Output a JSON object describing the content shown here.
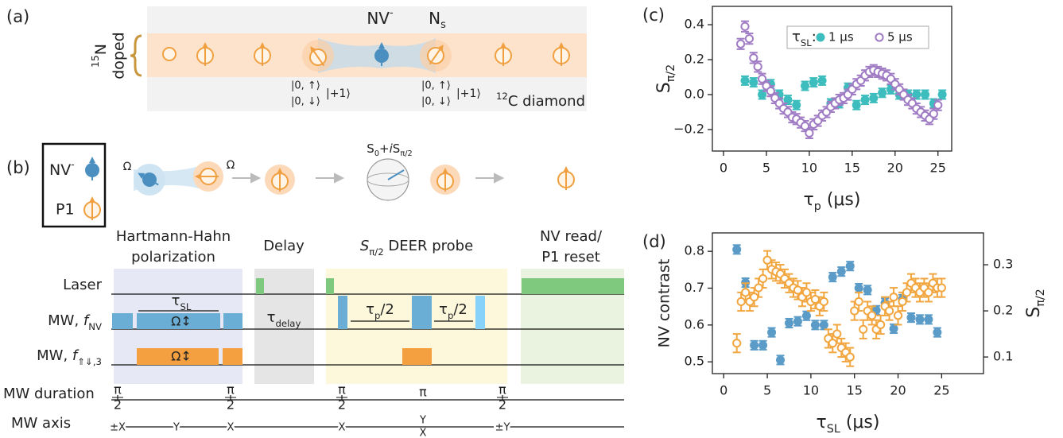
{
  "panel_a": {
    "label": "(a)",
    "doped": [
      "15",
      "N"
    ],
    "doped_word": "doped",
    "nv": [
      "NV",
      "-"
    ],
    "ns": [
      "N",
      "s"
    ],
    "kets": [
      {
        "up": "|0, ↑⟩",
        "down": "|0, ↓⟩",
        "plus": "|+1⟩"
      },
      {
        "up": "|0, ↑⟩",
        "down": "|0, ↓⟩",
        "plus": "|+1⟩"
      }
    ],
    "diamond": [
      "12",
      "C diamond"
    ]
  },
  "panel_b": {
    "label": "(b)",
    "legend_nv": [
      "NV",
      "-"
    ],
    "legend_p1": "P1",
    "omega": [
      "Ω",
      "Ω"
    ],
    "probe": [
      "S",
      "0",
      "+",
      "i",
      "S",
      "π/2"
    ],
    "stages": {
      "hh": [
        "Hartmann-Hahn",
        "polarization"
      ],
      "delay": "Delay",
      "deer": [
        "S",
        "π/2",
        " DEER probe"
      ],
      "read": [
        "NV read/",
        "P1 reset"
      ]
    },
    "rows": {
      "laser": "Laser",
      "mw_nv": [
        "MW, ",
        "f",
        "NV"
      ],
      "mw_p1": [
        "MW, ",
        "f",
        "⇑⇓,3"
      ],
      "duration": "MW duration",
      "axis": "MW axis"
    },
    "pulse_labels": {
      "tau_sl": [
        "τ",
        "SL"
      ],
      "omega_nv": "Ω↕",
      "omega_p1": "Ω↕",
      "tau_delay": [
        "τ",
        "delay"
      ],
      "tau_p1": [
        "τ",
        "p",
        "/2"
      ],
      "tau_p2": [
        "τ",
        "p",
        "/2"
      ]
    },
    "durations": [
      {
        "num": "π",
        "den": "2"
      },
      {
        "num": "π",
        "den": "2"
      },
      {
        "num": "π",
        "den": "2"
      },
      {
        "num": "π"
      },
      {
        "num": "π",
        "den": "2"
      }
    ],
    "axes": [
      "±X",
      "Y",
      "X",
      "X",
      "±Y"
    ],
    "axes_stack": [
      "Y",
      "X"
    ]
  },
  "chart_data": [
    {
      "type": "scatter",
      "panel": "(c)",
      "xlim": [
        -1.3,
        26.6
      ],
      "xticks": [
        0,
        5,
        10,
        15,
        20,
        25
      ],
      "ylim": [
        -0.323,
        0.505
      ],
      "yticks": [
        {
          "value": -0.2,
          "label": "−0.2"
        },
        {
          "value": 0,
          "label": "0.0"
        },
        0.2,
        0.4
      ],
      "x_label": [
        "τ",
        "p",
        " (μs)"
      ],
      "y_label": [
        "S",
        "π/2"
      ],
      "legend_title": [
        "τ",
        "SL",
        ":"
      ],
      "legend": "top",
      "series": [
        {
          "name": "1 μs",
          "color": "#3dbdbd",
          "marker": "filled",
          "error": 0.025,
          "x": [
            2.5,
            3.5,
            4.5,
            5.5,
            6.5,
            7.5,
            8.5,
            9.5,
            10.5,
            11.5,
            12.5,
            13.5,
            14.5,
            15.5,
            16.5,
            17.5,
            18.5,
            19.5,
            20.5,
            21.5,
            22.5,
            23.5,
            24.5,
            25.5
          ],
          "values": [
            0.08,
            0.07,
            0.0,
            0.06,
            0.0,
            -0.03,
            -0.06,
            0.05,
            0.07,
            0.08,
            -0.05,
            -0.05,
            0.04,
            -0.06,
            -0.03,
            -0.02,
            0.01,
            0.03,
            0.0,
            0.0,
            0.0,
            0.0,
            -0.05,
            0.0
          ]
        },
        {
          "name": "5 μs",
          "color": "#a07cc5",
          "marker": "open",
          "error": 0.03,
          "x": [
            2,
            2.5,
            3,
            3.5,
            4,
            4.5,
            5,
            5.5,
            6,
            6.5,
            7,
            7.5,
            8,
            8.5,
            9,
            9.5,
            10,
            10.5,
            11,
            11.5,
            12,
            12.5,
            13,
            13.5,
            14,
            14.5,
            15,
            15.5,
            16,
            16.5,
            17,
            17.5,
            18,
            18.5,
            19,
            19.5,
            20,
            20.5,
            21,
            21.5,
            22,
            22.5,
            23,
            23.5,
            24,
            24.5,
            25
          ],
          "values": [
            0.29,
            0.39,
            0.32,
            0.21,
            0.16,
            0.09,
            0.05,
            0.02,
            -0.02,
            -0.05,
            -0.08,
            -0.1,
            -0.13,
            -0.14,
            -0.16,
            -0.18,
            -0.22,
            -0.17,
            -0.15,
            -0.12,
            -0.1,
            -0.07,
            -0.05,
            -0.03,
            -0.02,
            0,
            0.03,
            0.06,
            0.08,
            0.11,
            0.13,
            0.14,
            0.13,
            0.12,
            0.11,
            0.09,
            0.06,
            0.03,
            0,
            -0.03,
            -0.05,
            -0.08,
            -0.1,
            -0.12,
            -0.14,
            -0.11,
            -0.06
          ]
        }
      ]
    },
    {
      "type": "scatter",
      "panel": "(d)",
      "xlim": [
        -1.3,
        29.8
      ],
      "xticks": [
        0,
        5,
        10,
        15,
        20,
        25
      ],
      "ylim": [
        0.468,
        0.85
      ],
      "yticks": [
        0.5,
        0.6,
        0.7,
        0.8
      ],
      "y2lim": [
        0.064,
        0.369
      ],
      "y2ticks": [
        0.1,
        0.2,
        0.3
      ],
      "x_label": [
        "τ",
        "SL",
        " (μs)"
      ],
      "y_label": "NV contrast",
      "y_color": "#5b9bc8",
      "y2_label": [
        "S",
        "π/2"
      ],
      "y2_color": "#c8963c",
      "series": [
        {
          "color": "#5b9bc8",
          "marker": "filled",
          "error": 0.012,
          "x": [
            1.5,
            2.5,
            3.5,
            4.5,
            5.5,
            6.5,
            7.5,
            8.5,
            9.5,
            10.5,
            11.5,
            12.5,
            13.5,
            14.5,
            15.5,
            16.5,
            17.5,
            18.5,
            19.5,
            20.5,
            21.5,
            22.5,
            23.5,
            24.5
          ],
          "values": [
            0.805,
            0.715,
            0.545,
            0.545,
            0.58,
            0.505,
            0.605,
            0.61,
            0.625,
            0.6,
            0.6,
            0.73,
            0.745,
            0.76,
            0.7,
            0.695,
            0.64,
            0.66,
            0.59,
            0.67,
            0.62,
            0.615,
            0.615,
            0.58
          ]
        },
        {
          "color": "#f2a640",
          "marker": "open",
          "error": 0.02,
          "axis": "y2",
          "x": [
            1.5,
            2,
            2.5,
            3,
            3.5,
            4,
            4.5,
            5,
            5.5,
            6,
            6.5,
            7,
            7.5,
            8,
            8.5,
            9,
            9.5,
            10,
            10.5,
            11,
            11.5,
            12,
            12.5,
            13,
            13.5,
            14,
            14.5,
            15,
            15.5,
            16,
            16.5,
            17,
            17.5,
            18,
            18.5,
            19,
            19.5,
            20,
            20.5,
            21,
            21.5,
            22,
            22.5,
            23,
            23.5,
            24,
            24.5,
            25
          ],
          "values": [
            0.13,
            0.22,
            0.24,
            0.22,
            0.23,
            0.25,
            0.27,
            0.31,
            0.29,
            0.285,
            0.28,
            0.27,
            0.26,
            0.25,
            0.245,
            0.23,
            0.24,
            0.22,
            0.225,
            0.21,
            0.22,
            0.14,
            0.13,
            0.15,
            0.12,
            0.11,
            0.1,
            0.2,
            0.22,
            0.16,
            0.2,
            0.19,
            0.16,
            0.17,
            0.21,
            0.2,
            0.23,
            0.19,
            0.22,
            0.24,
            0.26,
            0.25,
            0.24,
            0.25,
            0.24,
            0.26,
            0.25,
            0.25
          ]
        }
      ]
    }
  ]
}
